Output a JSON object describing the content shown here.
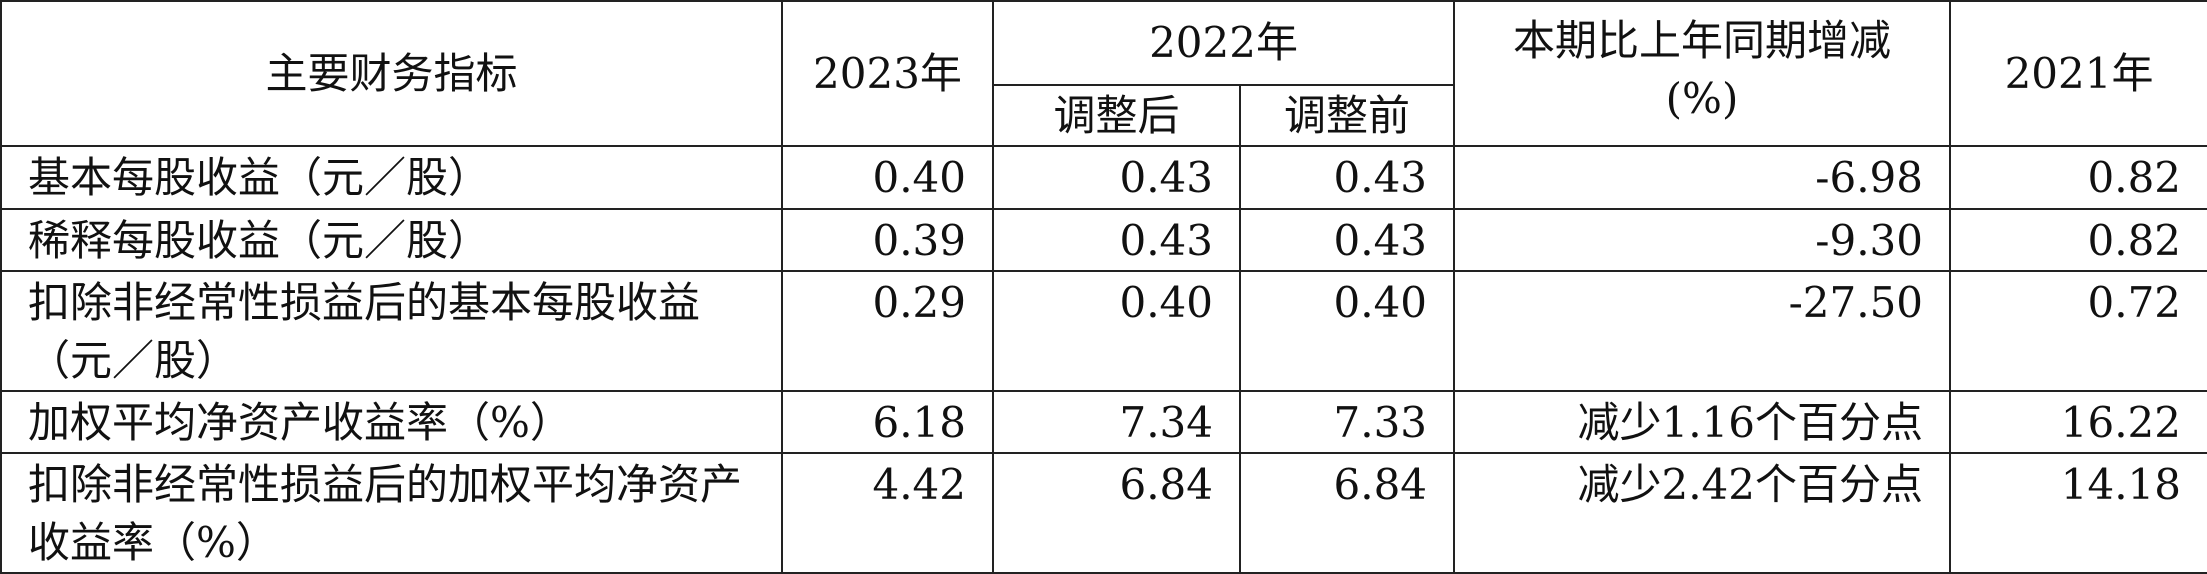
{
  "table": {
    "header": {
      "indicator": "主要财务指标",
      "y2023": "2023年",
      "y2022": "2022年",
      "adjusted_after": "调整后",
      "adjusted_before": "调整前",
      "change": [
        "本期比上年同期增减",
        "(%)"
      ],
      "y2021": "2021年"
    },
    "rows": [
      [
        "基本每股收益（元／股）",
        "0.40",
        "0.43",
        "0.43",
        "-6.98",
        "0.82"
      ],
      [
        "稀释每股收益（元／股）",
        "0.39",
        "0.43",
        "0.43",
        "-9.30",
        "0.82"
      ],
      [
        "扣除非经常性损益后的基本每股收益（元／股）",
        "0.29",
        "0.40",
        "0.40",
        "-27.50",
        "0.72"
      ],
      [
        "加权平均净资产收益率（%）",
        "6.18",
        "7.34",
        "7.33",
        "减少1.16个百分点",
        "16.22"
      ],
      [
        "扣除非经常性损益后的加权平均净资产收益率（%）",
        "4.42",
        "6.84",
        "6.84",
        "减少2.42个百分点",
        "14.18"
      ]
    ]
  }
}
